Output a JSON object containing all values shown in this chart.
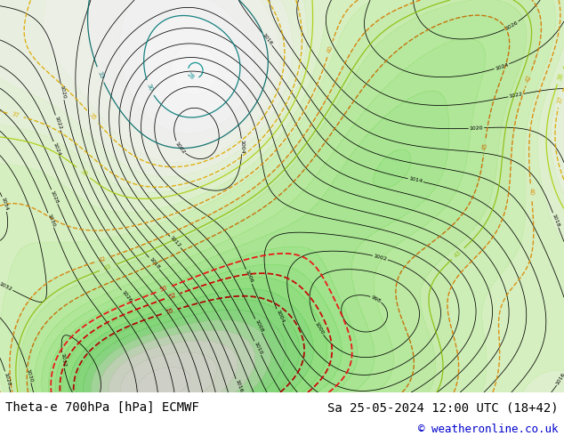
{
  "title": "Theta-e 700hPa [hPa] ECMWF",
  "datetime_str": "Sa 25-05-2024 12:00 UTC (18+42)",
  "copyright": "© weatheronline.co.uk",
  "bg_color": "#ffffff",
  "title_color": "#000000",
  "datetime_color": "#000000",
  "copyright_color": "#0000cc",
  "title_fontsize": 10,
  "datetime_fontsize": 10,
  "copyright_fontsize": 9,
  "fig_width": 6.34,
  "fig_height": 4.9,
  "dpi": 100
}
